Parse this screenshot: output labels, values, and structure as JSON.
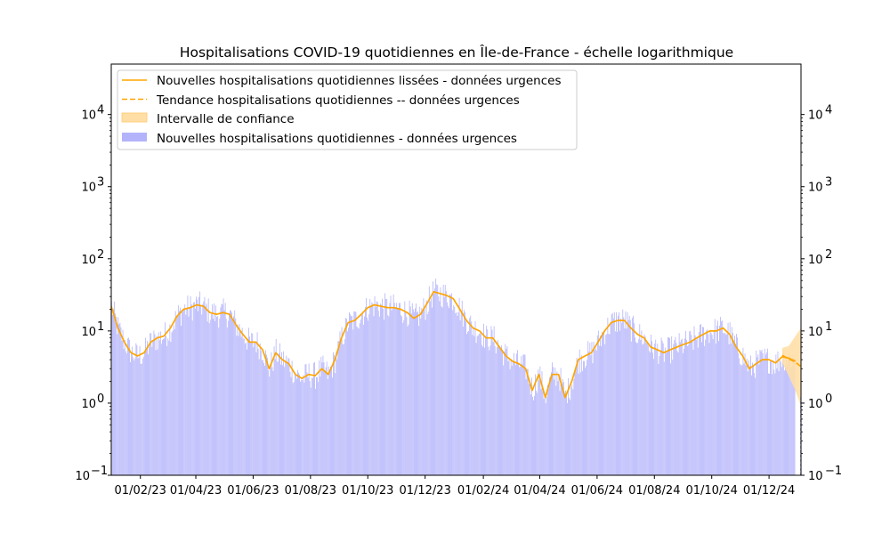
{
  "chart_data": {
    "type": "bar",
    "title": "Hospitalisations COVID-19 quotidiennes en Île-de-France - échelle logarithmique",
    "xlabel": "",
    "ylabel": "",
    "y_scale": "log",
    "ylim": [
      0.1,
      50000
    ],
    "y_ticks": [
      {
        "value": 0.1,
        "base": "10",
        "exp": "−1"
      },
      {
        "value": 1,
        "base": "10",
        "exp": "0"
      },
      {
        "value": 10,
        "base": "10",
        "exp": "1"
      },
      {
        "value": 100,
        "base": "10",
        "exp": "2"
      },
      {
        "value": 1000,
        "base": "10",
        "exp": "3"
      },
      {
        "value": 10000,
        "base": "10",
        "exp": "4"
      }
    ],
    "x_range": [
      "2023-01-01",
      "2025-01-04"
    ],
    "x_ticks": [
      {
        "date": "2023-02-01",
        "label": "01/02/23"
      },
      {
        "date": "2023-04-01",
        "label": "01/04/23"
      },
      {
        "date": "2023-06-01",
        "label": "01/06/23"
      },
      {
        "date": "2023-08-01",
        "label": "01/08/23"
      },
      {
        "date": "2023-10-01",
        "label": "01/10/23"
      },
      {
        "date": "2023-12-01",
        "label": "01/12/23"
      },
      {
        "date": "2024-02-01",
        "label": "01/02/24"
      },
      {
        "date": "2024-04-01",
        "label": "01/04/24"
      },
      {
        "date": "2024-06-01",
        "label": "01/06/24"
      },
      {
        "date": "2024-08-01",
        "label": "01/08/24"
      },
      {
        "date": "2024-10-01",
        "label": "01/10/24"
      },
      {
        "date": "2024-12-01",
        "label": "01/12/24"
      }
    ],
    "legend": {
      "position": "top-left",
      "entries": [
        {
          "label": "Nouvelles hospitalisations quotidiennes lissées - données urgences",
          "style": "solid-line",
          "color": "#ffa500"
        },
        {
          "label": "Tendance hospitalisations quotidiennes -- données urgences",
          "style": "dashed-line",
          "color": "#ffa500"
        },
        {
          "label": "Intervalle de confiance",
          "style": "patch",
          "color": "#ffdfa6"
        },
        {
          "label": "Nouvelles hospitalisations quotidiennes - données urgences",
          "style": "patch",
          "color": "#b3b3fb"
        }
      ]
    },
    "colors": {
      "bars": "#b3b3fb",
      "smoothed": "#ffa500",
      "trend": "#ffa500",
      "confidence": "#ffdfa6"
    },
    "series": [
      {
        "name": "Nouvelles hospitalisations quotidiennes lissées - données urgences",
        "style": "solid",
        "points": [
          {
            "x": "2023-01-01",
            "y": 22
          },
          {
            "x": "2023-01-08",
            "y": 11
          },
          {
            "x": "2023-01-15",
            "y": 7
          },
          {
            "x": "2023-01-22",
            "y": 5
          },
          {
            "x": "2023-01-29",
            "y": 4.5
          },
          {
            "x": "2023-02-05",
            "y": 5
          },
          {
            "x": "2023-02-12",
            "y": 7
          },
          {
            "x": "2023-02-19",
            "y": 8
          },
          {
            "x": "2023-02-26",
            "y": 8.5
          },
          {
            "x": "2023-03-05",
            "y": 11
          },
          {
            "x": "2023-03-12",
            "y": 16
          },
          {
            "x": "2023-03-19",
            "y": 20
          },
          {
            "x": "2023-03-26",
            "y": 21
          },
          {
            "x": "2023-04-02",
            "y": 23
          },
          {
            "x": "2023-04-09",
            "y": 22
          },
          {
            "x": "2023-04-16",
            "y": 18
          },
          {
            "x": "2023-04-23",
            "y": 17
          },
          {
            "x": "2023-04-30",
            "y": 18
          },
          {
            "x": "2023-05-07",
            "y": 17
          },
          {
            "x": "2023-05-14",
            "y": 12
          },
          {
            "x": "2023-05-21",
            "y": 9
          },
          {
            "x": "2023-05-28",
            "y": 7
          },
          {
            "x": "2023-06-04",
            "y": 7
          },
          {
            "x": "2023-06-11",
            "y": 5.5
          },
          {
            "x": "2023-06-18",
            "y": 3
          },
          {
            "x": "2023-06-25",
            "y": 5
          },
          {
            "x": "2023-07-02",
            "y": 4
          },
          {
            "x": "2023-07-09",
            "y": 3.5
          },
          {
            "x": "2023-07-16",
            "y": 2.5
          },
          {
            "x": "2023-07-23",
            "y": 2.2
          },
          {
            "x": "2023-07-30",
            "y": 2.5
          },
          {
            "x": "2023-08-06",
            "y": 2.4
          },
          {
            "x": "2023-08-13",
            "y": 3
          },
          {
            "x": "2023-08-20",
            "y": 2.5
          },
          {
            "x": "2023-08-27",
            "y": 4
          },
          {
            "x": "2023-09-03",
            "y": 8
          },
          {
            "x": "2023-09-10",
            "y": 13
          },
          {
            "x": "2023-09-17",
            "y": 14
          },
          {
            "x": "2023-09-24",
            "y": 17
          },
          {
            "x": "2023-10-01",
            "y": 21
          },
          {
            "x": "2023-10-08",
            "y": 23
          },
          {
            "x": "2023-10-15",
            "y": 22
          },
          {
            "x": "2023-10-22",
            "y": 21
          },
          {
            "x": "2023-10-29",
            "y": 21
          },
          {
            "x": "2023-11-05",
            "y": 20
          },
          {
            "x": "2023-11-12",
            "y": 18
          },
          {
            "x": "2023-11-19",
            "y": 15
          },
          {
            "x": "2023-11-26",
            "y": 17
          },
          {
            "x": "2023-12-03",
            "y": 24
          },
          {
            "x": "2023-12-10",
            "y": 35
          },
          {
            "x": "2023-12-17",
            "y": 33
          },
          {
            "x": "2023-12-24",
            "y": 31
          },
          {
            "x": "2023-12-31",
            "y": 28
          },
          {
            "x": "2024-01-07",
            "y": 20
          },
          {
            "x": "2024-01-14",
            "y": 14
          },
          {
            "x": "2024-01-21",
            "y": 11
          },
          {
            "x": "2024-01-28",
            "y": 10
          },
          {
            "x": "2024-02-04",
            "y": 8
          },
          {
            "x": "2024-02-11",
            "y": 8
          },
          {
            "x": "2024-02-18",
            "y": 6
          },
          {
            "x": "2024-02-25",
            "y": 4.5
          },
          {
            "x": "2024-03-03",
            "y": 3.8
          },
          {
            "x": "2024-03-10",
            "y": 3.5
          },
          {
            "x": "2024-03-17",
            "y": 3
          },
          {
            "x": "2024-03-24",
            "y": 1.5
          },
          {
            "x": "2024-03-31",
            "y": 2.5
          },
          {
            "x": "2024-04-07",
            "y": 1.2
          },
          {
            "x": "2024-04-14",
            "y": 2.5
          },
          {
            "x": "2024-04-21",
            "y": 2.5
          },
          {
            "x": "2024-04-28",
            "y": 1.2
          },
          {
            "x": "2024-05-05",
            "y": 2
          },
          {
            "x": "2024-05-12",
            "y": 4
          },
          {
            "x": "2024-05-19",
            "y": 4.5
          },
          {
            "x": "2024-05-26",
            "y": 5
          },
          {
            "x": "2024-06-02",
            "y": 7
          },
          {
            "x": "2024-06-09",
            "y": 10
          },
          {
            "x": "2024-06-16",
            "y": 13
          },
          {
            "x": "2024-06-23",
            "y": 14
          },
          {
            "x": "2024-06-30",
            "y": 14
          },
          {
            "x": "2024-07-07",
            "y": 11
          },
          {
            "x": "2024-07-14",
            "y": 9
          },
          {
            "x": "2024-07-21",
            "y": 8
          },
          {
            "x": "2024-07-28",
            "y": 6
          },
          {
            "x": "2024-08-04",
            "y": 5.5
          },
          {
            "x": "2024-08-11",
            "y": 5
          },
          {
            "x": "2024-08-18",
            "y": 5.5
          },
          {
            "x": "2024-08-25",
            "y": 6
          },
          {
            "x": "2024-09-01",
            "y": 6.5
          },
          {
            "x": "2024-09-08",
            "y": 7
          },
          {
            "x": "2024-09-15",
            "y": 8
          },
          {
            "x": "2024-09-22",
            "y": 9
          },
          {
            "x": "2024-09-29",
            "y": 10
          },
          {
            "x": "2024-10-06",
            "y": 10
          },
          {
            "x": "2024-10-13",
            "y": 11
          },
          {
            "x": "2024-10-20",
            "y": 9
          },
          {
            "x": "2024-10-27",
            "y": 6
          },
          {
            "x": "2024-11-03",
            "y": 4.5
          },
          {
            "x": "2024-11-10",
            "y": 3
          },
          {
            "x": "2024-11-17",
            "y": 3.5
          },
          {
            "x": "2024-11-24",
            "y": 4
          },
          {
            "x": "2024-12-01",
            "y": 4
          },
          {
            "x": "2024-12-08",
            "y": 3.6
          },
          {
            "x": "2024-12-15",
            "y": 4.4
          },
          {
            "x": "2024-12-22",
            "y": 4.2
          },
          {
            "x": "2024-12-29",
            "y": 3.8
          }
        ]
      },
      {
        "name": "Tendance hospitalisations quotidiennes -- données urgences",
        "style": "dashed",
        "points": [
          {
            "x": "2024-12-15",
            "y": 4.6
          },
          {
            "x": "2024-12-22",
            "y": 4.1
          },
          {
            "x": "2024-12-29",
            "y": 3.7
          },
          {
            "x": "2025-01-04",
            "y": 3.2
          }
        ]
      }
    ],
    "confidence_band": [
      {
        "x": "2024-12-15",
        "low": 3.6,
        "high": 5.8
      },
      {
        "x": "2024-12-22",
        "low": 2.4,
        "high": 6.2
      },
      {
        "x": "2024-12-29",
        "low": 1.5,
        "high": 8.5
      },
      {
        "x": "2025-01-04",
        "low": 0.9,
        "high": 11
      }
    ]
  }
}
